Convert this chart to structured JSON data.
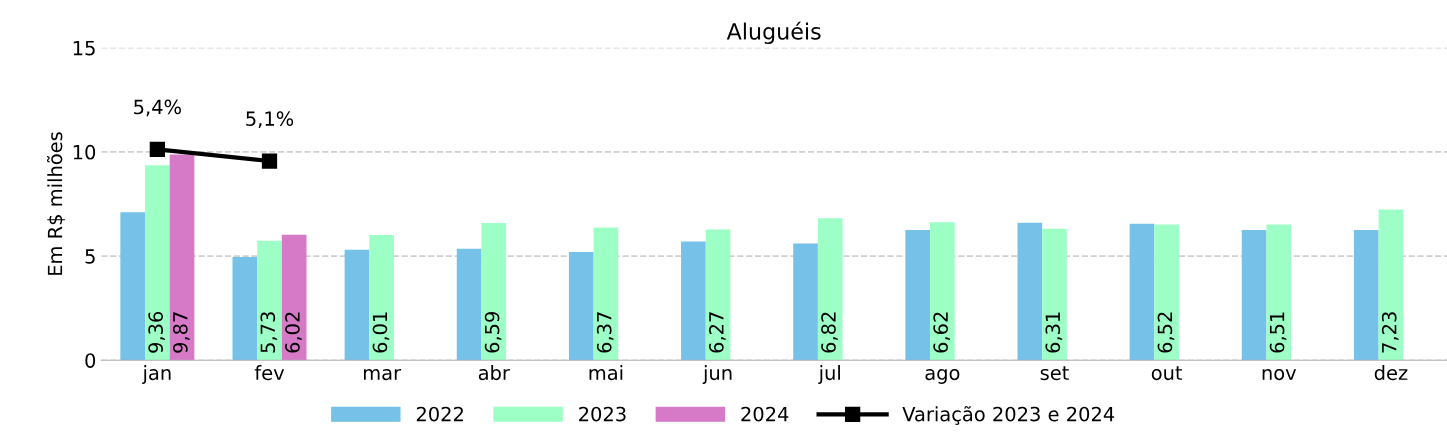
{
  "chart_data": {
    "type": "bar",
    "title": "Aluguéis",
    "ylabel": "Em R$ milhões",
    "categories": [
      "jan",
      "fev",
      "mar",
      "abr",
      "mai",
      "jun",
      "jul",
      "ago",
      "set",
      "out",
      "nov",
      "dez"
    ],
    "series": [
      {
        "name": "2022",
        "color": "#75c1e8",
        "values": [
          7.1,
          4.95,
          5.3,
          5.35,
          5.2,
          5.7,
          5.6,
          6.25,
          6.6,
          6.55,
          6.25,
          6.25
        ]
      },
      {
        "name": "2023",
        "color": "#9dffc6",
        "values": [
          9.36,
          5.73,
          6.01,
          6.59,
          6.37,
          6.27,
          6.82,
          6.62,
          6.31,
          6.52,
          6.51,
          7.23
        ],
        "value_labels": [
          "9,36",
          "5,73",
          "6,01",
          "6,59",
          "6,37",
          "6,27",
          "6,82",
          "6,62",
          "6,31",
          "6,52",
          "6,51",
          "7,23"
        ]
      },
      {
        "name": "2024",
        "color": "#d67ac8",
        "values": [
          9.87,
          6.02,
          null,
          null,
          null,
          null,
          null,
          null,
          null,
          null,
          null,
          null
        ],
        "value_labels": [
          "9,87",
          "6,02",
          null,
          null,
          null,
          null,
          null,
          null,
          null,
          null,
          null,
          null
        ]
      },
      {
        "name": "Variação 2023 e 2024",
        "type": "line",
        "axis": "y2",
        "color": "#000000",
        "marker": "square",
        "values": [
          5.4,
          5.1,
          null,
          null,
          null,
          null,
          null,
          null,
          null,
          null,
          null,
          null
        ],
        "value_labels": [
          "5,4%",
          "5,1%",
          null,
          null,
          null,
          null,
          null,
          null,
          null,
          null,
          null,
          null
        ]
      }
    ],
    "ylim": [
      0,
      15
    ],
    "yticks": [
      0,
      5,
      10,
      15
    ],
    "y2lim": [
      0,
      8
    ],
    "grid": "y",
    "legend": "bottom"
  }
}
